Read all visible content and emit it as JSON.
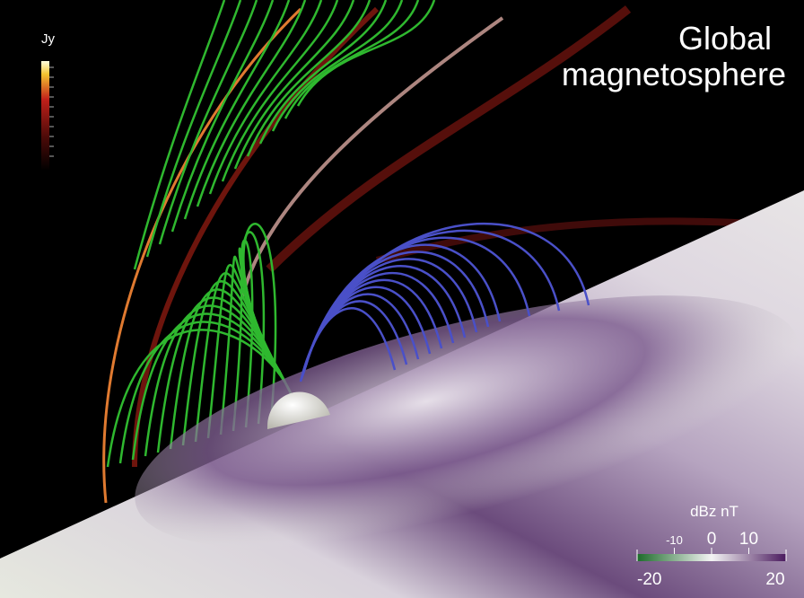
{
  "title_lines": [
    "Global",
    "magnetosphere"
  ],
  "jy_colorbar": {
    "title": "Jy"
  },
  "dbz_colorbar": {
    "title": "dBz nT",
    "range": [
      -20,
      20
    ],
    "major_ticks": [
      -20,
      20
    ],
    "minor_labels": [
      -10,
      0,
      10
    ]
  }
}
